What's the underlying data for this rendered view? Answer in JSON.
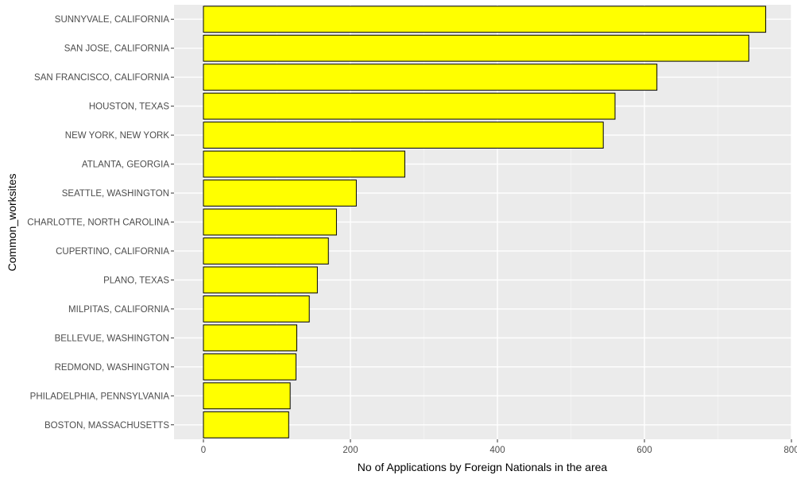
{
  "chart_data": {
    "type": "bar",
    "orientation": "horizontal",
    "categories": [
      "SUNNYVALE, CALIFORNIA",
      "SAN JOSE, CALIFORNIA",
      "SAN FRANCISCO, CALIFORNIA",
      "HOUSTON, TEXAS",
      "NEW YORK, NEW YORK",
      "ATLANTA, GEORGIA",
      "SEATTLE, WASHINGTON",
      "CHARLOTTE, NORTH CAROLINA",
      "CUPERTINO, CALIFORNIA",
      "PLANO, TEXAS",
      "MILPITAS, CALIFORNIA",
      "BELLEVUE, WASHINGTON",
      "REDMOND, WASHINGTON",
      "PHILADELPHIA, PENNSYLVANIA",
      "BOSTON, MASSACHUSETTS"
    ],
    "values": [
      765,
      742,
      617,
      560,
      544,
      274,
      208,
      181,
      170,
      155,
      144,
      127,
      126,
      118,
      116
    ],
    "xlabel": "No of Applications by Foreign Nationals in the area",
    "ylabel": "Common_worksites",
    "xlim": [
      -40,
      800
    ],
    "xticks": [
      0,
      200,
      400,
      600,
      800
    ],
    "grid": true,
    "colors": {
      "bar_fill": "#ffff00",
      "bar_stroke": "#000000",
      "panel_background": "#ebebeb",
      "grid_major": "#ffffff",
      "grid_minor": "#f5f5f5"
    }
  }
}
